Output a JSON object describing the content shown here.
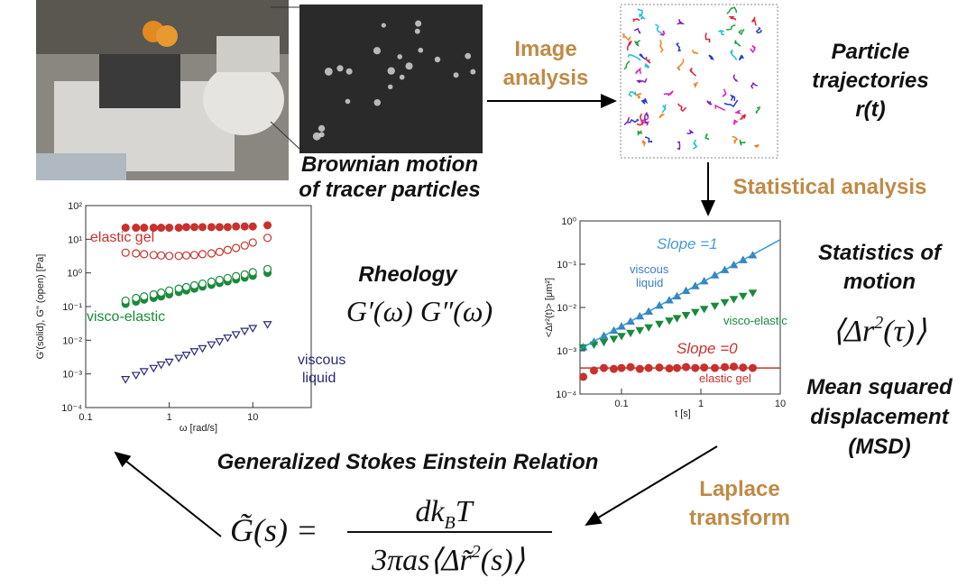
{
  "diagram": {
    "brownian": [
      "Brownian motion",
      "of tracer particles"
    ],
    "image_analysis": [
      "Image",
      "analysis"
    ],
    "trajectories": [
      "Particle",
      "trajectories",
      "r(t)"
    ],
    "statistical_analysis": "Statistical analysis",
    "statistics": [
      "Statistics of",
      "motion"
    ],
    "msd_symbol": [
      "⟨Δr",
      "2",
      "(τ)⟩"
    ],
    "msd": [
      "Mean squared",
      "displacement",
      "(MSD)"
    ],
    "rheology": [
      "Rheology",
      "G′(ω)  G″(ω)"
    ],
    "laplace": [
      "Laplace",
      "transform"
    ],
    "gser": "Generalized Stokes Einstein Relation",
    "formula": {
      "lhs": "G̃(s) =",
      "numerator": [
        "dk",
        "B",
        "T"
      ],
      "denominator": [
        "3πas⟨Δr̃",
        "2",
        "(s)⟩"
      ]
    }
  },
  "chart_data": [
    {
      "type": "scatter",
      "log_x": true,
      "log_y": true,
      "x_label": "ω  [rad/s]",
      "y_label": "G'(solid), G\" (open)  [Pa]",
      "xlim": [
        0.1,
        50
      ],
      "ylim": [
        0.0001,
        100
      ],
      "xticks": [
        0.1,
        1,
        10
      ],
      "yticks": [
        {
          "value": 0.0001,
          "label": "10⁻⁴"
        },
        {
          "value": 0.001,
          "label": "10⁻³"
        },
        {
          "value": 0.01,
          "label": "10⁻²"
        },
        {
          "value": 0.1,
          "label": "10⁻¹"
        },
        {
          "value": 1,
          "label": "10⁰"
        },
        {
          "value": 10,
          "label": "10¹"
        },
        {
          "value": 100,
          "label": "10²"
        }
      ],
      "x": [
        0.3,
        0.4,
        0.5,
        0.65,
        0.8,
        1,
        1.3,
        1.6,
        2,
        2.5,
        3.2,
        4,
        5,
        6.3,
        8,
        10,
        15
      ],
      "series": [
        {
          "color": "#c8312e",
          "marker": "circle",
          "values": [
            22,
            22,
            22,
            22,
            22,
            22,
            22,
            23,
            23,
            23,
            23,
            23,
            23,
            24,
            24,
            24,
            26
          ]
        },
        {
          "color": "#c8312e",
          "marker": "circle-open",
          "values": [
            4,
            3.8,
            3.6,
            3.4,
            3.3,
            3.2,
            3.2,
            3.3,
            3.4,
            3.6,
            3.8,
            4.2,
            4.8,
            5.5,
            6.5,
            8,
            11
          ]
        },
        {
          "color": "#1a8a3a",
          "marker": "circle",
          "values": [
            0.12,
            0.14,
            0.16,
            0.18,
            0.2,
            0.23,
            0.27,
            0.3,
            0.34,
            0.39,
            0.44,
            0.5,
            0.56,
            0.64,
            0.72,
            0.82,
            1.0
          ]
        },
        {
          "color": "#1a8a3a",
          "marker": "circle-open",
          "values": [
            0.15,
            0.18,
            0.2,
            0.23,
            0.26,
            0.3,
            0.34,
            0.38,
            0.43,
            0.48,
            0.55,
            0.62,
            0.7,
            0.8,
            0.9,
            1.05,
            1.3
          ]
        },
        {
          "color": "#2a2a7a",
          "marker": "triangle-down-open",
          "values": [
            0.0007,
            0.00093,
            0.0012,
            0.0015,
            0.0019,
            0.0023,
            0.003,
            0.0037,
            0.0047,
            0.0058,
            0.0075,
            0.0093,
            0.012,
            0.015,
            0.019,
            0.023,
            0.03
          ]
        }
      ],
      "annotations": [
        {
          "text": "elastic gel",
          "color": "#c8312e"
        },
        {
          "text": "visco-elastic",
          "color": "#1a8a3a"
        },
        {
          "text": "viscous",
          "color": "#2a2a7a"
        },
        {
          "text": "liquid",
          "color": "#2a2a7a"
        }
      ]
    },
    {
      "type": "scatter",
      "log_x": true,
      "log_y": true,
      "x_label": "t [s]",
      "y_label": "<Δr²(t)> [μm²]",
      "xlim": [
        0.03,
        10
      ],
      "ylim": [
        0.0001,
        1
      ],
      "xticks": [
        0.1,
        1,
        10
      ],
      "yticks": [
        {
          "value": 0.0001,
          "label": "10⁻⁴"
        },
        {
          "value": 0.001,
          "label": "10⁻³"
        },
        {
          "value": 0.01,
          "label": "10⁻²"
        },
        {
          "value": 0.1,
          "label": "10⁻¹"
        },
        {
          "value": 1,
          "label": "10⁰"
        }
      ],
      "x": [
        0.033,
        0.045,
        0.06,
        0.08,
        0.1,
        0.13,
        0.17,
        0.22,
        0.3,
        0.4,
        0.5,
        0.65,
        0.85,
        1.1,
        1.5,
        2,
        2.6,
        3.4,
        4.5
      ],
      "series": [
        {
          "color": "#3a7fc4",
          "marker": "triangle-up",
          "values": [
            0.0012,
            0.0016,
            0.0022,
            0.0029,
            0.0036,
            0.0047,
            0.0062,
            0.008,
            0.011,
            0.0145,
            0.018,
            0.024,
            0.031,
            0.04,
            0.055,
            0.073,
            0.095,
            0.124,
            0.16
          ]
        },
        {
          "color": "#1a8a3a",
          "marker": "triangle-down",
          "values": [
            0.0012,
            0.0014,
            0.0016,
            0.0019,
            0.0022,
            0.0026,
            0.003,
            0.0035,
            0.0042,
            0.005,
            0.0057,
            0.0067,
            0.0079,
            0.0093,
            0.011,
            0.0133,
            0.0157,
            0.0186,
            0.022
          ]
        },
        {
          "color": "#c8312e",
          "marker": "circle",
          "values": [
            0.00025,
            0.00035,
            0.0004,
            0.00038,
            0.0004,
            0.00042,
            0.00038,
            0.0004,
            0.00041,
            0.00039,
            0.0004,
            0.00042,
            0.0004,
            0.00041,
            0.0004,
            0.00042,
            0.00043,
            0.00041,
            0.0004
          ]
        },
        {
          "color": "#2a9ac8",
          "marker": "line",
          "x": [
            0.03,
            10
          ],
          "values": [
            0.0011,
            0.37
          ]
        },
        {
          "color": "#c8312e",
          "marker": "line",
          "x": [
            0.03,
            10
          ],
          "values": [
            0.0004,
            0.0004
          ]
        }
      ],
      "annotations": [
        {
          "text": "Slope =1",
          "color": "#4a9ad8"
        },
        {
          "text": "viscous",
          "color": "#3a7fc4"
        },
        {
          "text": "liquid",
          "color": "#3a7fc4"
        },
        {
          "text": "visco-elastic",
          "color": "#1a8a3a"
        },
        {
          "text": "Slope =0",
          "color": "#c8312e"
        },
        {
          "text": "elastic gel",
          "color": "#c8312e"
        }
      ]
    }
  ]
}
